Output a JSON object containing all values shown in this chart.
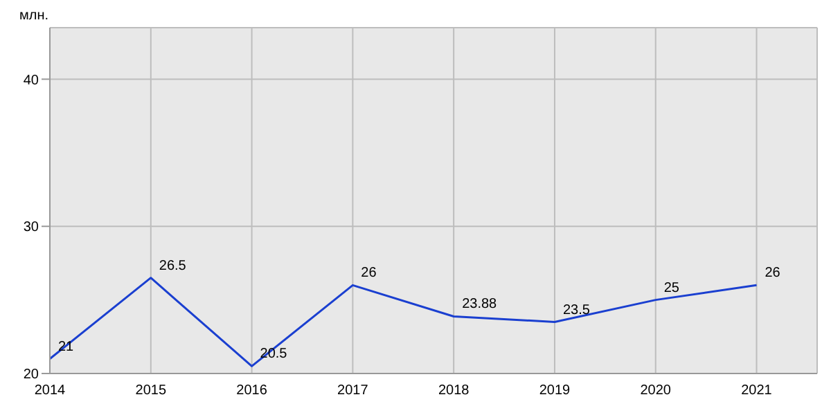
{
  "chart_data": {
    "type": "line",
    "ylabel": "млн.",
    "x": [
      2014,
      2015,
      2016,
      2017,
      2018,
      2019,
      2020,
      2021
    ],
    "series": [
      {
        "color": "#1a3fd0",
        "values": [
          21,
          26.5,
          20.5,
          26,
          23.88,
          23.5,
          25,
          26
        ]
      }
    ],
    "xlim": [
      2014,
      2021.6
    ],
    "xticks": [
      2014,
      2015,
      2016,
      2017,
      2018,
      2019,
      2020,
      2021
    ],
    "ylim": [
      20,
      43.5
    ],
    "yticks": [
      20,
      30,
      40
    ],
    "grid": true,
    "marker": "none",
    "line_style": "solid",
    "data_labels": true
  }
}
